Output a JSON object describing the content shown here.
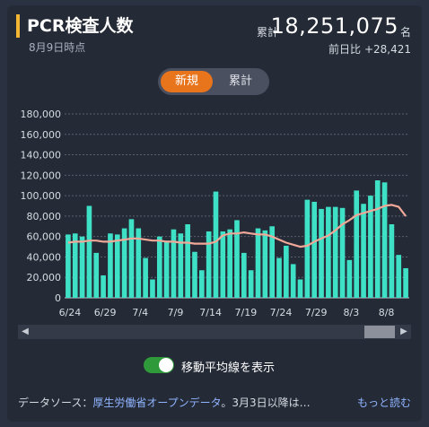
{
  "header": {
    "title": "PCR検査人数",
    "date": "8月9日時点",
    "total_label": "累計",
    "total_value": "18,251,075",
    "total_unit": "名",
    "diff_label": "前日比",
    "diff_value": "+28,421"
  },
  "toggle": {
    "new_label": "新規",
    "cumulative_label": "累計",
    "selected": "新規"
  },
  "moving_average": {
    "label": "移動平均線を表示",
    "enabled": true
  },
  "footer": {
    "prefix": "データソース：",
    "source_link": "厚生労働省オープンデータ",
    "note": "。3月3日以降は…",
    "more_link": "もっと読む"
  },
  "colors": {
    "bar": "#3ee0c6",
    "line": "#f0a898",
    "accent": "#f2b632",
    "active_tab": "#e8741c",
    "switch": "#2f9a3a"
  },
  "chart_data": {
    "type": "bar",
    "ylim": [
      0,
      180000
    ],
    "y_ticks": [
      "0",
      "20,000",
      "40,000",
      "60,000",
      "80,000",
      "100,000",
      "120,000",
      "140,000",
      "160,000",
      "180,000"
    ],
    "x_tick_labels": [
      "6/24",
      "6/29",
      "7/4",
      "7/9",
      "7/14",
      "7/19",
      "7/24",
      "7/29",
      "8/3",
      "8/8"
    ],
    "values": [
      62000,
      63000,
      60000,
      90000,
      44000,
      22000,
      63000,
      62000,
      68000,
      77000,
      68000,
      39000,
      18000,
      60000,
      56000,
      67000,
      63000,
      72000,
      45000,
      27000,
      65000,
      104000,
      65000,
      67000,
      76000,
      44000,
      27000,
      68000,
      66000,
      70000,
      39000,
      51000,
      33000,
      18000,
      96000,
      94000,
      87000,
      89000,
      89000,
      88000,
      37000,
      105000,
      92000,
      100000,
      115000,
      113000,
      72000,
      42000,
      29000
    ],
    "moving_average": [
      54000,
      55000,
      55000,
      56000,
      56000,
      55000,
      55000,
      56000,
      57000,
      58000,
      58000,
      57000,
      56000,
      56000,
      55000,
      55000,
      54000,
      54000,
      53000,
      53000,
      53000,
      55000,
      61000,
      63000,
      63000,
      64000,
      63000,
      62000,
      62000,
      60000,
      57000,
      54000,
      52000,
      50000,
      51000,
      55000,
      58000,
      61000,
      66000,
      72000,
      76000,
      81000,
      83000,
      85000,
      87000,
      90000,
      91000,
      89000,
      80000
    ]
  }
}
